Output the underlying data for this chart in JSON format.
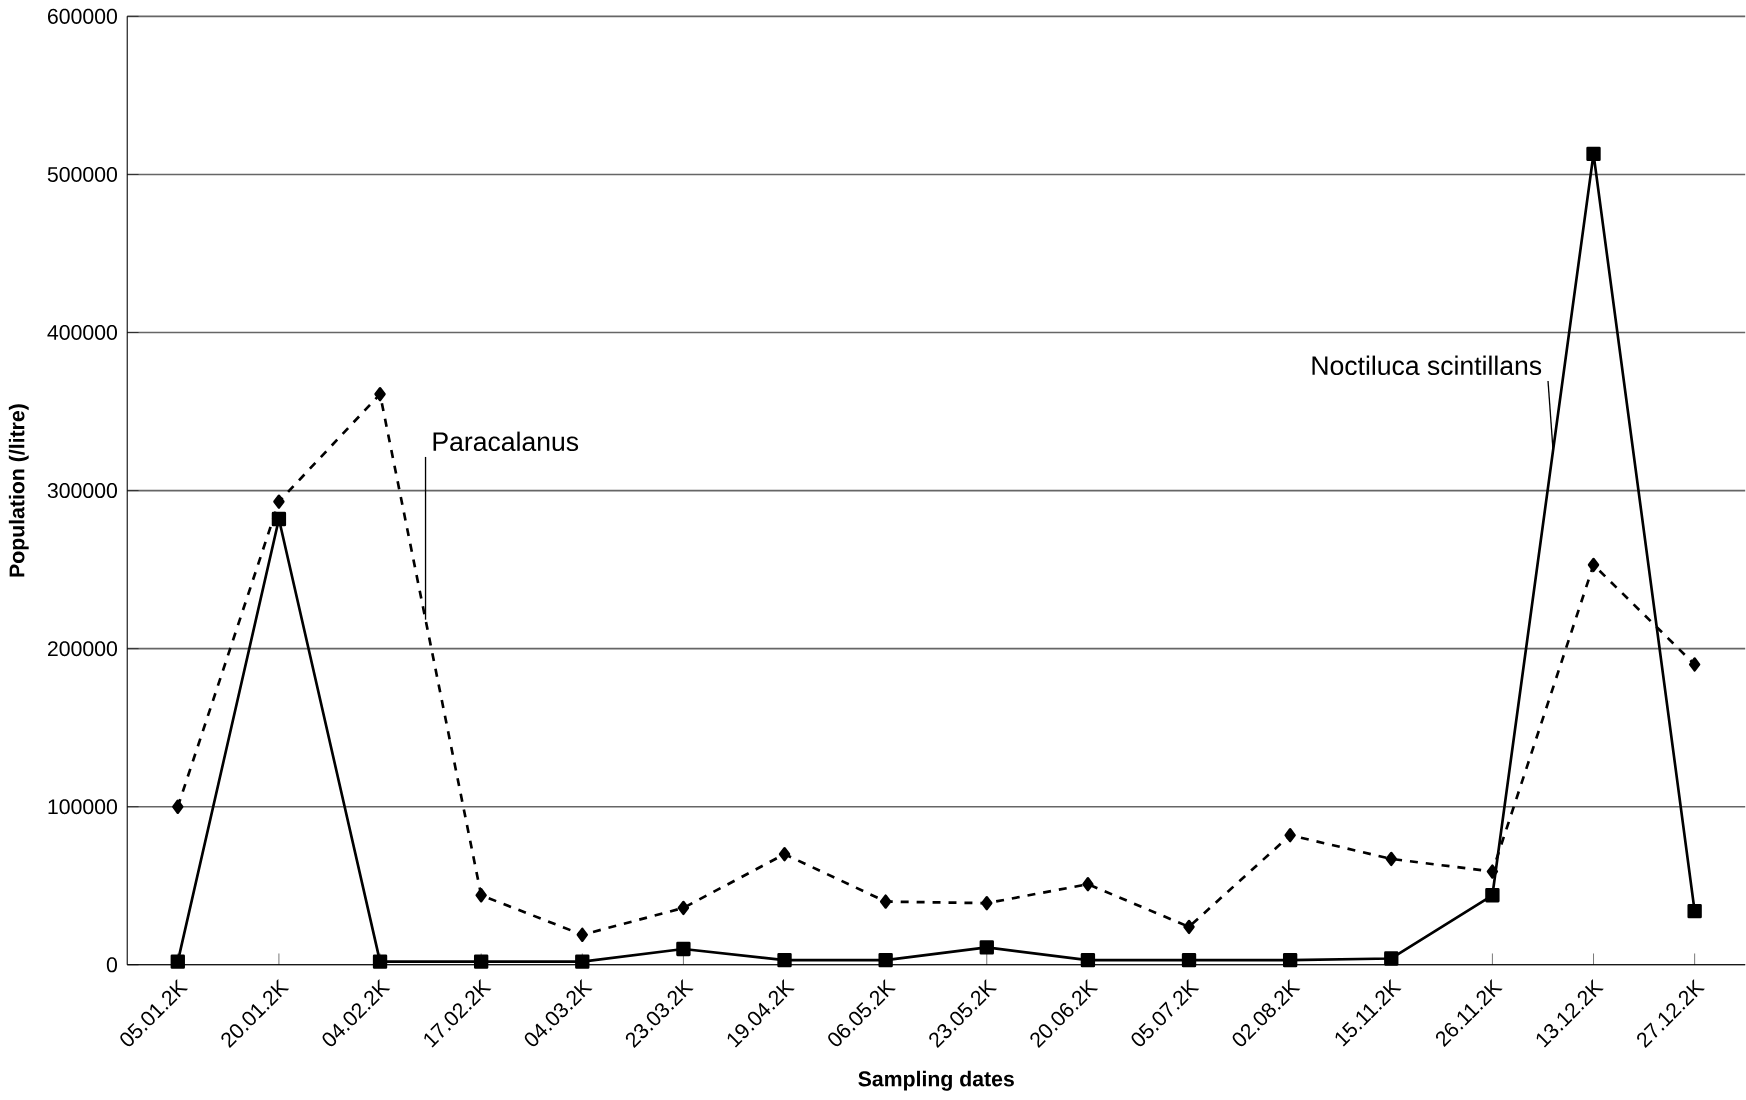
{
  "chart_data": {
    "type": "line",
    "xlabel": "Sampling dates",
    "ylabel": "Population (/litre)",
    "categories": [
      "05.01.2K",
      "20.01.2K",
      "04.02.2K",
      "17.02.2K",
      "04.03.2K",
      "23.03.2K",
      "19.04.2K",
      "06.05.2K",
      "23.05.2K",
      "20.06.2K",
      "05.07.2K",
      "02.08.2K",
      "15.11.2K",
      "26.11.2K",
      "13.12.2K",
      "27.12.2K"
    ],
    "series": [
      {
        "name": "Paracalanus",
        "color": "#000000",
        "marker": "diamond",
        "line_style": "dashed",
        "values": [
          100000,
          293000,
          361000,
          44000,
          19000,
          36000,
          70000,
          40000,
          39000,
          51000,
          24000,
          82000,
          67000,
          59000,
          253000,
          190000
        ]
      },
      {
        "name": "Noctiluca scintillans",
        "color": "#000000",
        "marker": "square",
        "line_style": "solid",
        "values": [
          2000,
          282000,
          2000,
          2000,
          2000,
          10000,
          3000,
          3000,
          11000,
          3000,
          3000,
          3000,
          4000,
          44000,
          513000,
          34000
        ]
      }
    ],
    "ylim": [
      0,
      600000
    ],
    "yticks": [
      0,
      100000,
      200000,
      300000,
      400000,
      500000,
      600000
    ],
    "grid": "y",
    "legend": false
  }
}
